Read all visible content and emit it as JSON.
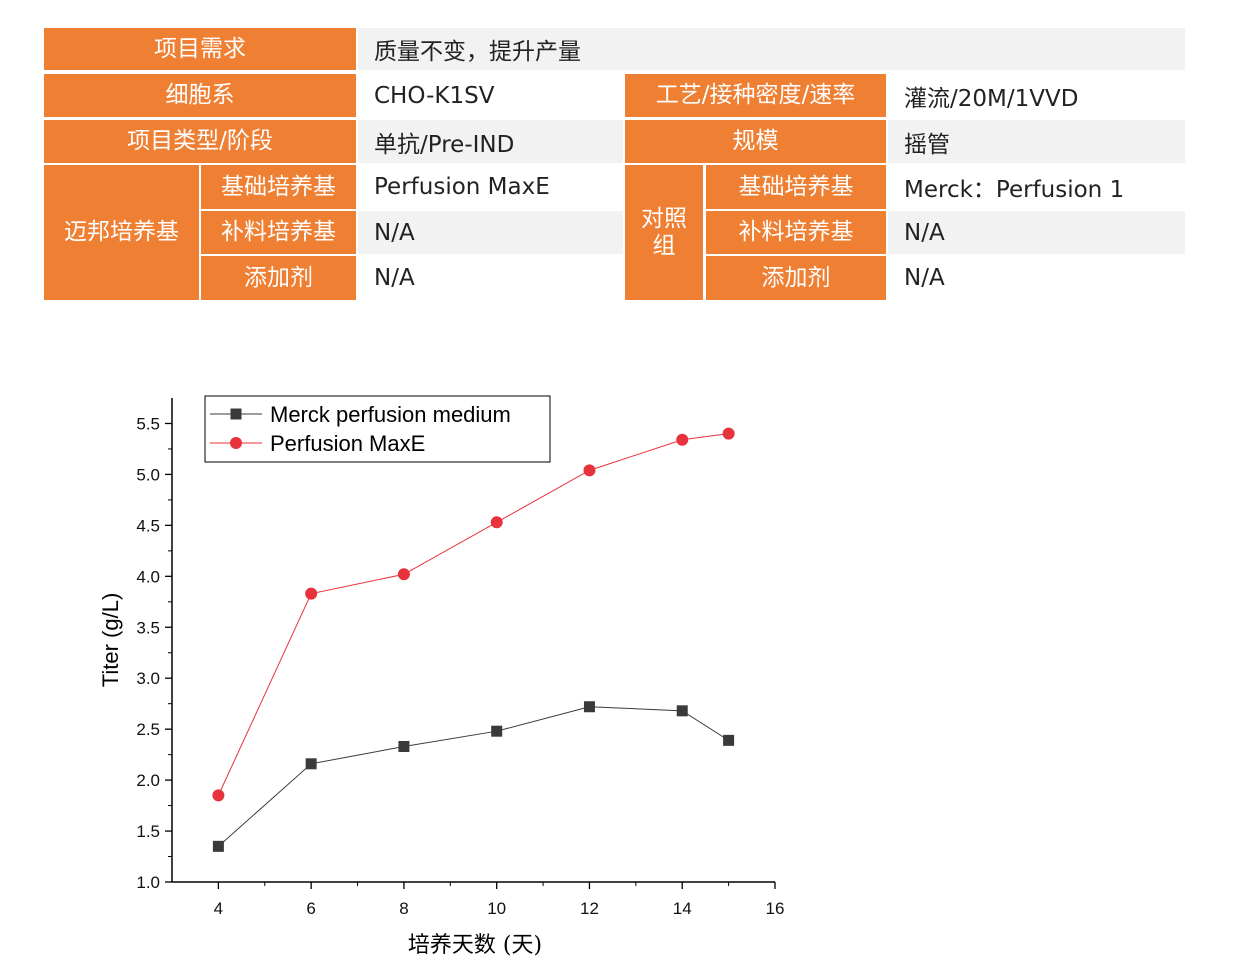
{
  "table": {
    "project_need": {
      "label": "项目需求",
      "value": "质量不变，提升产量"
    },
    "cell_line": {
      "label": "细胞系",
      "value": "CHO-K1SV"
    },
    "process": {
      "label": "工艺/接种密度/速率",
      "value": "灌流/20M/1VVD"
    },
    "project_type": {
      "label": "项目类型/阶段",
      "value": "单抗/Pre-IND"
    },
    "scale": {
      "label": "规模",
      "value": "摇管"
    },
    "maibang": {
      "label": "迈邦培养基",
      "basal": {
        "label": "基础培养基",
        "value": "Perfusion MaxE"
      },
      "feed": {
        "label": "补料培养基",
        "value": "N/A"
      },
      "additive": {
        "label": "添加剂",
        "value": "N/A"
      }
    },
    "control": {
      "label": "对照组",
      "basal": {
        "label": "基础培养基",
        "value": "Merck：Perfusion 1"
      },
      "feed": {
        "label": "补料培养基",
        "value": "N/A"
      },
      "additive": {
        "label": "添加剂",
        "value": "N/A"
      }
    }
  },
  "colors": {
    "accent": "#ee7f33",
    "merck": "#3a3a3a",
    "maxe": "#e8323c"
  },
  "chart_data": {
    "type": "line",
    "title": "",
    "xlabel": "培养天数 (天)",
    "ylabel": "Titer (g/L)",
    "xlim": [
      3,
      16
    ],
    "ylim": [
      1.0,
      5.75
    ],
    "xticks": [
      4,
      6,
      8,
      10,
      12,
      14,
      16
    ],
    "yticks": [
      1.0,
      1.5,
      2.0,
      2.5,
      3.0,
      3.5,
      4.0,
      4.5,
      5.0,
      5.5
    ],
    "legend": "top-left",
    "grid": false,
    "series": [
      {
        "name": "Merck perfusion medium",
        "marker": "square",
        "x": [
          4,
          6,
          8,
          10,
          12,
          14,
          15
        ],
        "y": [
          1.35,
          2.16,
          2.33,
          2.48,
          2.72,
          2.68,
          2.39
        ]
      },
      {
        "name": "Perfusion MaxE",
        "marker": "circle",
        "x": [
          4,
          6,
          8,
          10,
          12,
          14,
          15
        ],
        "y": [
          1.85,
          3.83,
          4.02,
          4.53,
          5.04,
          5.34,
          5.4
        ]
      }
    ]
  }
}
